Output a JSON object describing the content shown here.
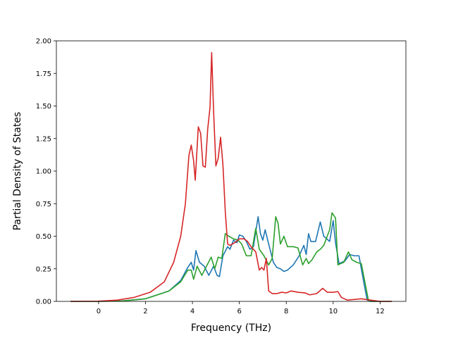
{
  "chart_data": {
    "type": "line",
    "title": "",
    "xlabel": "Frequency (THz)",
    "ylabel": "Partial Density of States",
    "xlim": [
      -1.8,
      13.1
    ],
    "ylim": [
      0,
      2.0
    ],
    "xticks": [
      0,
      2,
      4,
      6,
      8,
      10,
      12
    ],
    "yticks": [
      0.0,
      0.25,
      0.5,
      0.75,
      1.0,
      1.25,
      1.5,
      1.75,
      2.0
    ],
    "xtick_labels": [
      "0",
      "2",
      "4",
      "6",
      "8",
      "10",
      "12"
    ],
    "ytick_labels": [
      "0.00",
      "0.25",
      "0.50",
      "0.75",
      "1.00",
      "1.25",
      "1.50",
      "1.75",
      "2.00"
    ],
    "grid": false,
    "legend": "none",
    "series": [
      {
        "color": "#1f77b4",
        "points": [
          [
            -1.2,
            0
          ],
          [
            0,
            0
          ],
          [
            1,
            0.003
          ],
          [
            2,
            0.02
          ],
          [
            3,
            0.08
          ],
          [
            3.5,
            0.16
          ],
          [
            3.8,
            0.26
          ],
          [
            3.95,
            0.3
          ],
          [
            4.05,
            0.24
          ],
          [
            4.15,
            0.39
          ],
          [
            4.3,
            0.3
          ],
          [
            4.5,
            0.27
          ],
          [
            4.7,
            0.2
          ],
          [
            4.9,
            0.27
          ],
          [
            5.05,
            0.2
          ],
          [
            5.15,
            0.19
          ],
          [
            5.3,
            0.35
          ],
          [
            5.5,
            0.42
          ],
          [
            5.6,
            0.4
          ],
          [
            5.75,
            0.47
          ],
          [
            5.9,
            0.45
          ],
          [
            6.0,
            0.51
          ],
          [
            6.15,
            0.5
          ],
          [
            6.3,
            0.46
          ],
          [
            6.45,
            0.4
          ],
          [
            6.6,
            0.42
          ],
          [
            6.8,
            0.65
          ],
          [
            6.9,
            0.52
          ],
          [
            7.0,
            0.47
          ],
          [
            7.1,
            0.55
          ],
          [
            7.25,
            0.44
          ],
          [
            7.45,
            0.3
          ],
          [
            7.6,
            0.26
          ],
          [
            7.75,
            0.25
          ],
          [
            7.9,
            0.23
          ],
          [
            8.05,
            0.24
          ],
          [
            8.3,
            0.28
          ],
          [
            8.55,
            0.35
          ],
          [
            8.75,
            0.43
          ],
          [
            8.85,
            0.36
          ],
          [
            8.95,
            0.52
          ],
          [
            9.05,
            0.46
          ],
          [
            9.25,
            0.46
          ],
          [
            9.45,
            0.61
          ],
          [
            9.6,
            0.5
          ],
          [
            9.85,
            0.46
          ],
          [
            10.0,
            0.62
          ],
          [
            10.1,
            0.45
          ],
          [
            10.25,
            0.29
          ],
          [
            10.5,
            0.31
          ],
          [
            10.7,
            0.36
          ],
          [
            10.9,
            0.35
          ],
          [
            11.1,
            0.35
          ],
          [
            11.3,
            0.15
          ],
          [
            11.45,
            0.01
          ],
          [
            11.6,
            0
          ],
          [
            12.5,
            0
          ]
        ]
      },
      {
        "color": "#2ca02c",
        "points": [
          [
            -1.2,
            0
          ],
          [
            0,
            0
          ],
          [
            1,
            0.003
          ],
          [
            2,
            0.02
          ],
          [
            3,
            0.08
          ],
          [
            3.5,
            0.15
          ],
          [
            3.8,
            0.24
          ],
          [
            3.95,
            0.24
          ],
          [
            4.05,
            0.17
          ],
          [
            4.2,
            0.27
          ],
          [
            4.4,
            0.2
          ],
          [
            4.6,
            0.27
          ],
          [
            4.8,
            0.34
          ],
          [
            4.95,
            0.25
          ],
          [
            5.1,
            0.34
          ],
          [
            5.25,
            0.33
          ],
          [
            5.4,
            0.52
          ],
          [
            5.55,
            0.5
          ],
          [
            5.75,
            0.48
          ],
          [
            5.95,
            0.47
          ],
          [
            6.1,
            0.44
          ],
          [
            6.3,
            0.35
          ],
          [
            6.5,
            0.35
          ],
          [
            6.7,
            0.56
          ],
          [
            6.85,
            0.4
          ],
          [
            7.05,
            0.35
          ],
          [
            7.25,
            0.28
          ],
          [
            7.4,
            0.33
          ],
          [
            7.55,
            0.65
          ],
          [
            7.65,
            0.6
          ],
          [
            7.75,
            0.44
          ],
          [
            7.9,
            0.5
          ],
          [
            8.05,
            0.42
          ],
          [
            8.3,
            0.42
          ],
          [
            8.5,
            0.41
          ],
          [
            8.7,
            0.28
          ],
          [
            8.85,
            0.33
          ],
          [
            8.95,
            0.29
          ],
          [
            9.1,
            0.32
          ],
          [
            9.3,
            0.38
          ],
          [
            9.45,
            0.4
          ],
          [
            9.6,
            0.43
          ],
          [
            9.85,
            0.55
          ],
          [
            9.95,
            0.68
          ],
          [
            10.1,
            0.64
          ],
          [
            10.2,
            0.28
          ],
          [
            10.45,
            0.3
          ],
          [
            10.65,
            0.38
          ],
          [
            10.8,
            0.32
          ],
          [
            11.0,
            0.3
          ],
          [
            11.2,
            0.29
          ],
          [
            11.35,
            0.15
          ],
          [
            11.5,
            0.01
          ],
          [
            11.6,
            0
          ],
          [
            12.5,
            0
          ]
        ]
      },
      {
        "color": "#d62728",
        "points": [
          [
            -1.2,
            0
          ],
          [
            0,
            0.002
          ],
          [
            0.8,
            0.01
          ],
          [
            1.5,
            0.03
          ],
          [
            2.2,
            0.07
          ],
          [
            2.8,
            0.15
          ],
          [
            3.2,
            0.3
          ],
          [
            3.5,
            0.5
          ],
          [
            3.7,
            0.75
          ],
          [
            3.85,
            1.12
          ],
          [
            3.95,
            1.2
          ],
          [
            4.05,
            1.08
          ],
          [
            4.12,
            0.93
          ],
          [
            4.25,
            1.34
          ],
          [
            4.35,
            1.29
          ],
          [
            4.45,
            1.04
          ],
          [
            4.55,
            1.03
          ],
          [
            4.65,
            1.32
          ],
          [
            4.75,
            1.49
          ],
          [
            4.82,
            1.91
          ],
          [
            4.9,
            1.47
          ],
          [
            5.0,
            1.04
          ],
          [
            5.1,
            1.1
          ],
          [
            5.2,
            1.26
          ],
          [
            5.3,
            1.05
          ],
          [
            5.4,
            0.69
          ],
          [
            5.5,
            0.44
          ],
          [
            5.6,
            0.43
          ],
          [
            5.8,
            0.45
          ],
          [
            6.0,
            0.48
          ],
          [
            6.2,
            0.48
          ],
          [
            6.35,
            0.46
          ],
          [
            6.5,
            0.42
          ],
          [
            6.7,
            0.38
          ],
          [
            6.85,
            0.24
          ],
          [
            6.95,
            0.26
          ],
          [
            7.05,
            0.24
          ],
          [
            7.15,
            0.33
          ],
          [
            7.25,
            0.08
          ],
          [
            7.4,
            0.06
          ],
          [
            7.6,
            0.06
          ],
          [
            7.8,
            0.07
          ],
          [
            8.0,
            0.065
          ],
          [
            8.2,
            0.08
          ],
          [
            8.5,
            0.07
          ],
          [
            8.8,
            0.065
          ],
          [
            9.0,
            0.05
          ],
          [
            9.3,
            0.06
          ],
          [
            9.55,
            0.1
          ],
          [
            9.75,
            0.07
          ],
          [
            10.0,
            0.07
          ],
          [
            10.2,
            0.075
          ],
          [
            10.35,
            0.03
          ],
          [
            10.6,
            0.01
          ],
          [
            11.2,
            0.02
          ],
          [
            11.6,
            0.01
          ],
          [
            12.0,
            0
          ],
          [
            12.5,
            0
          ]
        ]
      }
    ]
  }
}
